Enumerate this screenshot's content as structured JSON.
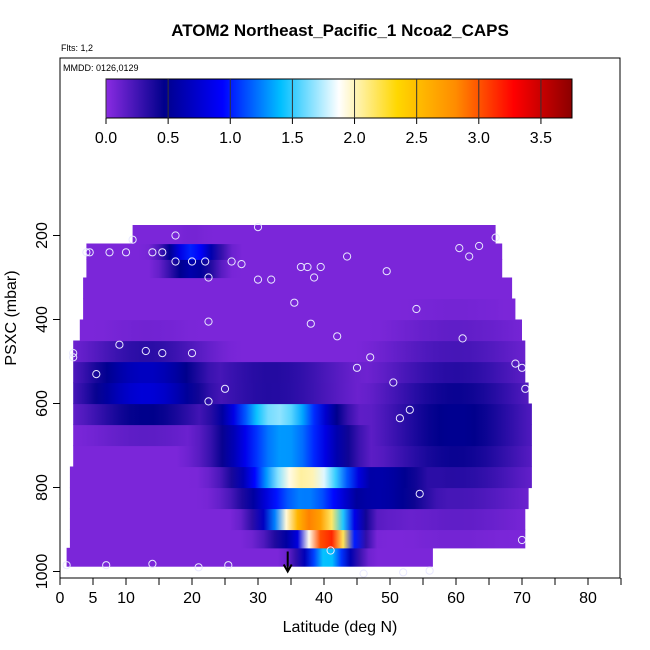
{
  "chart_data": {
    "type": "heatmap",
    "title": "ATOM2 Northeast_Pacific_1 Ncoa2_CAPS",
    "flights_label": "Flts: 1,2",
    "dates_label": "MMDD: 0126,0129",
    "xlabel": "Latitude (deg N)",
    "ylabel": "PSXC (mbar)",
    "xlim": [
      0,
      85
    ],
    "ylim": [
      1000,
      50
    ],
    "y_inverted": true,
    "grid": false,
    "x_ticks": [
      0,
      5,
      10,
      20,
      30,
      40,
      50,
      60,
      70,
      80
    ],
    "x_minor_ticks": [
      15,
      25,
      35,
      45,
      55,
      65,
      75,
      85
    ],
    "y_ticks": [
      200,
      400,
      600,
      800,
      1000
    ],
    "colorbar": {
      "range": [
        0,
        3.75
      ],
      "ticks": [
        0.0,
        0.5,
        1.0,
        1.5,
        2.0,
        2.5,
        3.0,
        3.5
      ],
      "tick_labels": [
        "0.0",
        "0.5",
        "1.0",
        "1.5",
        "2.0",
        "2.5",
        "3.0",
        "3.5"
      ],
      "colors": [
        "#8a2be2",
        "#00008b",
        "#0000ff",
        "#00bfff",
        "#ffffff",
        "#ffd700",
        "#ff8c00",
        "#ff0000",
        "#8b0000"
      ],
      "placement": "top"
    },
    "pressure_bands": [
      {
        "p": 962,
        "lat_start": 1,
        "lat_end": 56.5
      },
      {
        "p": 925,
        "lat_start": 1.5,
        "lat_end": 70.5
      },
      {
        "p": 875,
        "lat_start": 1.5,
        "lat_end": 70.5
      },
      {
        "p": 825,
        "lat_start": 1.5,
        "lat_end": 71
      },
      {
        "p": 775,
        "lat_start": 1.5,
        "lat_end": 71.5
      },
      {
        "p": 725,
        "lat_start": 2,
        "lat_end": 71.5
      },
      {
        "p": 675,
        "lat_start": 2,
        "lat_end": 71.5
      },
      {
        "p": 625,
        "lat_start": 2,
        "lat_end": 71.5
      },
      {
        "p": 575,
        "lat_start": 2,
        "lat_end": 71
      },
      {
        "p": 525,
        "lat_start": 2,
        "lat_end": 70.5
      },
      {
        "p": 475,
        "lat_start": 2,
        "lat_end": 70.5
      },
      {
        "p": 425,
        "lat_start": 3,
        "lat_end": 70
      },
      {
        "p": 375,
        "lat_start": 3.5,
        "lat_end": 69
      },
      {
        "p": 325,
        "lat_start": 3.5,
        "lat_end": 68.5
      },
      {
        "p": 275,
        "lat_start": 4,
        "lat_end": 67
      },
      {
        "p": 238,
        "lat_start": 4,
        "lat_end": 67
      },
      {
        "p": 200,
        "lat_start": 11,
        "lat_end": 66
      }
    ],
    "anomaly": {
      "background_value": 0.05,
      "features": [
        {
          "lat": 40.5,
          "p": 935,
          "value": 3.7,
          "lat_width": 3.8,
          "p_width": 28
        },
        {
          "lat": 38,
          "p": 880,
          "value": 2.9,
          "lat_width": 6,
          "p_width": 40
        },
        {
          "lat": 37,
          "p": 790,
          "value": 2.3,
          "lat_width": 8.5,
          "p_width": 45
        },
        {
          "lat": 34,
          "p": 700,
          "value": 1.8,
          "lat_width": 9,
          "p_width": 45
        },
        {
          "lat": 33,
          "p": 630,
          "value": 1.7,
          "lat_width": 8,
          "p_width": 40
        },
        {
          "lat": 32,
          "p": 550,
          "value": 0.7,
          "lat_width": 12,
          "p_width": 30
        },
        {
          "lat": 20,
          "p": 250,
          "value": 1.2,
          "lat_width": 4,
          "p_width": 30
        },
        {
          "lat": 13,
          "p": 560,
          "value": 0.8,
          "lat_width": 10,
          "p_width": 90
        },
        {
          "lat": 48,
          "p": 800,
          "value": 0.7,
          "lat_width": 10,
          "p_width": 60
        },
        {
          "lat": 60,
          "p": 650,
          "value": 0.5,
          "lat_width": 12,
          "p_width": 200
        }
      ]
    },
    "observation_points": [
      {
        "lat": 1,
        "p": 985
      },
      {
        "lat": 7,
        "p": 985
      },
      {
        "lat": 14,
        "p": 982
      },
      {
        "lat": 21,
        "p": 990
      },
      {
        "lat": 25.5,
        "p": 985
      },
      {
        "lat": 41,
        "p": 950
      },
      {
        "lat": 46,
        "p": 1005
      },
      {
        "lat": 52,
        "p": 1002
      },
      {
        "lat": 56,
        "p": 998
      },
      {
        "lat": 54.5,
        "p": 815
      },
      {
        "lat": 70,
        "p": 925
      },
      {
        "lat": 70.5,
        "p": 565
      },
      {
        "lat": 69,
        "p": 505
      },
      {
        "lat": 70,
        "p": 515
      },
      {
        "lat": 61,
        "p": 445
      },
      {
        "lat": 54,
        "p": 375
      },
      {
        "lat": 53,
        "p": 615
      },
      {
        "lat": 51.5,
        "p": 635
      },
      {
        "lat": 50.5,
        "p": 550
      },
      {
        "lat": 47,
        "p": 490
      },
      {
        "lat": 45,
        "p": 515
      },
      {
        "lat": 42,
        "p": 440
      },
      {
        "lat": 38,
        "p": 410
      },
      {
        "lat": 35.5,
        "p": 360
      },
      {
        "lat": 22.5,
        "p": 405
      },
      {
        "lat": 25,
        "p": 565
      },
      {
        "lat": 22.5,
        "p": 595
      },
      {
        "lat": 20,
        "p": 480
      },
      {
        "lat": 15.5,
        "p": 480
      },
      {
        "lat": 13,
        "p": 475
      },
      {
        "lat": 9,
        "p": 460
      },
      {
        "lat": 2,
        "p": 480
      },
      {
        "lat": 2,
        "p": 490
      },
      {
        "lat": 5.5,
        "p": 530
      },
      {
        "lat": 4,
        "p": 240
      },
      {
        "lat": 4.5,
        "p": 240
      },
      {
        "lat": 7.5,
        "p": 240
      },
      {
        "lat": 10,
        "p": 240
      },
      {
        "lat": 11,
        "p": 210
      },
      {
        "lat": 14,
        "p": 240
      },
      {
        "lat": 15.5,
        "p": 240
      },
      {
        "lat": 17.5,
        "p": 200
      },
      {
        "lat": 17.5,
        "p": 262
      },
      {
        "lat": 20,
        "p": 262
      },
      {
        "lat": 22,
        "p": 262
      },
      {
        "lat": 22.5,
        "p": 300
      },
      {
        "lat": 26,
        "p": 262
      },
      {
        "lat": 27.5,
        "p": 268
      },
      {
        "lat": 30,
        "p": 180
      },
      {
        "lat": 30,
        "p": 305
      },
      {
        "lat": 32,
        "p": 305
      },
      {
        "lat": 36.5,
        "p": 275
      },
      {
        "lat": 37.5,
        "p": 275
      },
      {
        "lat": 38.5,
        "p": 300
      },
      {
        "lat": 39.5,
        "p": 275
      },
      {
        "lat": 43.5,
        "p": 250
      },
      {
        "lat": 49.5,
        "p": 285
      },
      {
        "lat": 60.5,
        "p": 230
      },
      {
        "lat": 62,
        "p": 250
      },
      {
        "lat": 63.5,
        "p": 225
      },
      {
        "lat": 66,
        "p": 205
      }
    ],
    "marker": {
      "lat": 34.5,
      "p": 1000,
      "shape": "arrow-down"
    }
  }
}
